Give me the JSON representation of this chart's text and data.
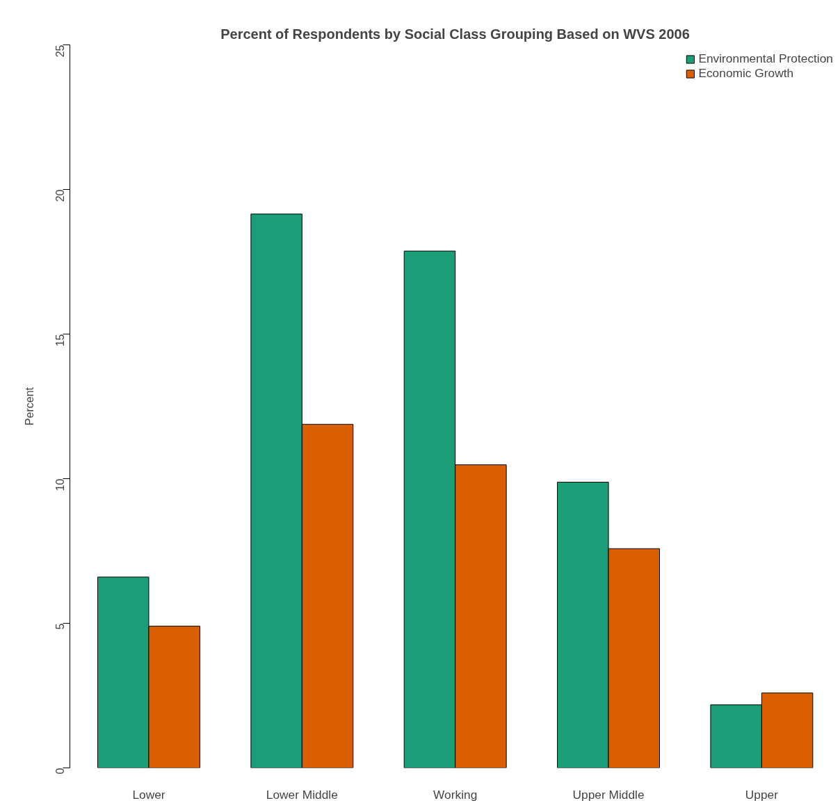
{
  "chart_data": {
    "type": "bar",
    "title": "Percent of Respondents by Social Class Grouping Based on WVS 2006",
    "ylabel": "Percent",
    "categories": [
      "Lower",
      "Lower Middle",
      "Working",
      "Upper Middle",
      "Upper"
    ],
    "series": [
      {
        "name": "Environmental Protection",
        "color": "#1b9e77",
        "values": [
          6.6,
          19.15,
          17.87,
          9.88,
          2.18
        ]
      },
      {
        "name": "Economic Growth",
        "color": "#d95f02",
        "values": [
          4.9,
          11.88,
          10.48,
          7.58,
          2.59
        ]
      }
    ],
    "ylim": [
      0,
      25
    ],
    "yticks": [
      0,
      5,
      10,
      15,
      20,
      25
    ],
    "grid": false,
    "legend": "top right"
  }
}
